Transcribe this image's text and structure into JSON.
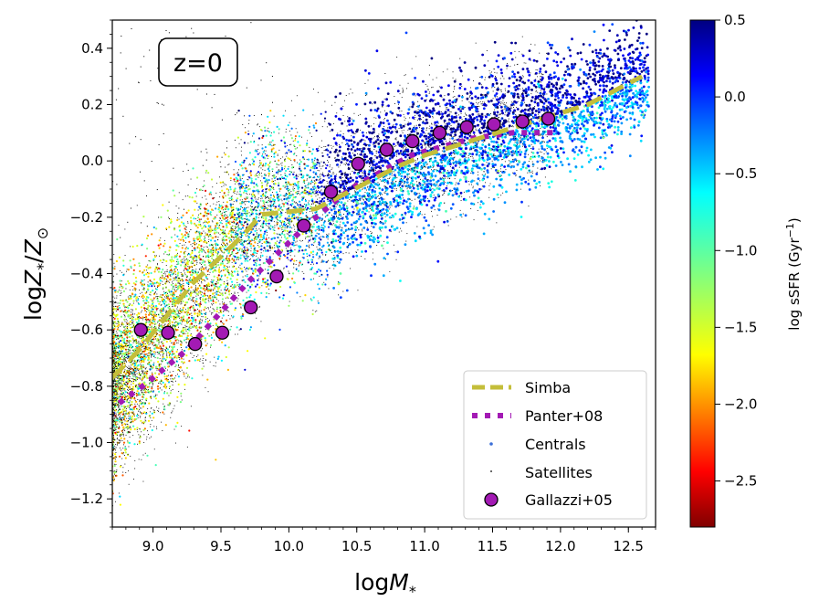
{
  "chart_data": {
    "type": "scatter",
    "annotation": "z=0",
    "xlabel_base": "log",
    "xlabel_var": "M",
    "xlabel_sub": "*",
    "ylabel_base": "log",
    "ylabel_var": "Z",
    "ylabel_sub1": "*",
    "ylabel_sep": "/",
    "ylabel_var2": "Z",
    "ylabel_sub2": "⊙",
    "xlim": [
      8.7,
      12.7
    ],
    "ylim": [
      -1.3,
      0.5
    ],
    "x_ticks": [
      "9.0",
      "9.5",
      "10.0",
      "10.5",
      "11.0",
      "11.5",
      "12.0",
      "12.5"
    ],
    "y_ticks": [
      "−1.2",
      "−1.0",
      "−0.8",
      "−0.6",
      "−0.4",
      "−0.2",
      "0.0",
      "0.2",
      "0.4"
    ],
    "colorbar": {
      "label_main": "log sSFR (Gyr",
      "label_exp": "−1",
      "label_close": ")",
      "range": [
        -2.8,
        0.5
      ],
      "ticks": [
        "0.5",
        "0.0",
        "−0.5",
        "−1.0",
        "−1.5",
        "−2.0",
        "−2.5"
      ],
      "colormap": "jet_r"
    },
    "legend_placement": "lower-right",
    "legend": [
      "Simba",
      "Panter+08",
      "Centrals",
      "Satellites",
      "Gallazzi+05"
    ],
    "series": [
      {
        "name": "Simba",
        "style": "dashed-line",
        "color": "#c4be3a",
        "x": [
          8.7,
          8.9,
          9.1,
          9.3,
          9.5,
          9.65,
          9.8,
          10.0,
          10.2,
          10.4,
          10.6,
          10.8,
          11.0,
          11.2,
          11.4,
          11.6,
          11.8,
          12.0,
          12.2,
          12.4,
          12.6
        ],
        "y": [
          -0.77,
          -0.67,
          -0.55,
          -0.43,
          -0.34,
          -0.27,
          -0.19,
          -0.18,
          -0.17,
          -0.12,
          -0.07,
          -0.02,
          0.02,
          0.05,
          0.08,
          0.11,
          0.14,
          0.17,
          0.2,
          0.25,
          0.3
        ]
      },
      {
        "name": "Panter+08",
        "style": "dotted-line",
        "color": "#a31ab4",
        "x": [
          8.75,
          8.95,
          9.1,
          9.25,
          9.4,
          9.55,
          9.7,
          9.85,
          10.0,
          10.15,
          10.3,
          10.45,
          10.6,
          10.75,
          10.9,
          11.05,
          11.2,
          11.35,
          11.5,
          11.65,
          11.8,
          11.95
        ],
        "y": [
          -0.86,
          -0.79,
          -0.73,
          -0.67,
          -0.59,
          -0.51,
          -0.43,
          -0.36,
          -0.29,
          -0.22,
          -0.16,
          -0.1,
          -0.06,
          -0.02,
          0.02,
          0.04,
          0.06,
          0.08,
          0.09,
          0.1,
          0.1,
          0.1
        ]
      },
      {
        "name": "Gallazzi+05",
        "style": "circles",
        "color": "#a31ab4",
        "x": [
          8.91,
          9.11,
          9.31,
          9.51,
          9.72,
          9.91,
          10.11,
          10.31,
          10.51,
          10.72,
          10.91,
          11.11,
          11.31,
          11.51,
          11.72,
          11.91
        ],
        "y": [
          -0.6,
          -0.61,
          -0.65,
          -0.61,
          -0.52,
          -0.41,
          -0.23,
          -0.11,
          -0.01,
          0.04,
          0.07,
          0.1,
          0.12,
          0.13,
          0.14,
          0.15
        ]
      }
    ],
    "scatter_populations": [
      {
        "name": "Centrals",
        "marker": "point",
        "colored_by": "log sSFR"
      },
      {
        "name": "Satellites",
        "marker": "pixel",
        "color": "#000000"
      }
    ]
  }
}
